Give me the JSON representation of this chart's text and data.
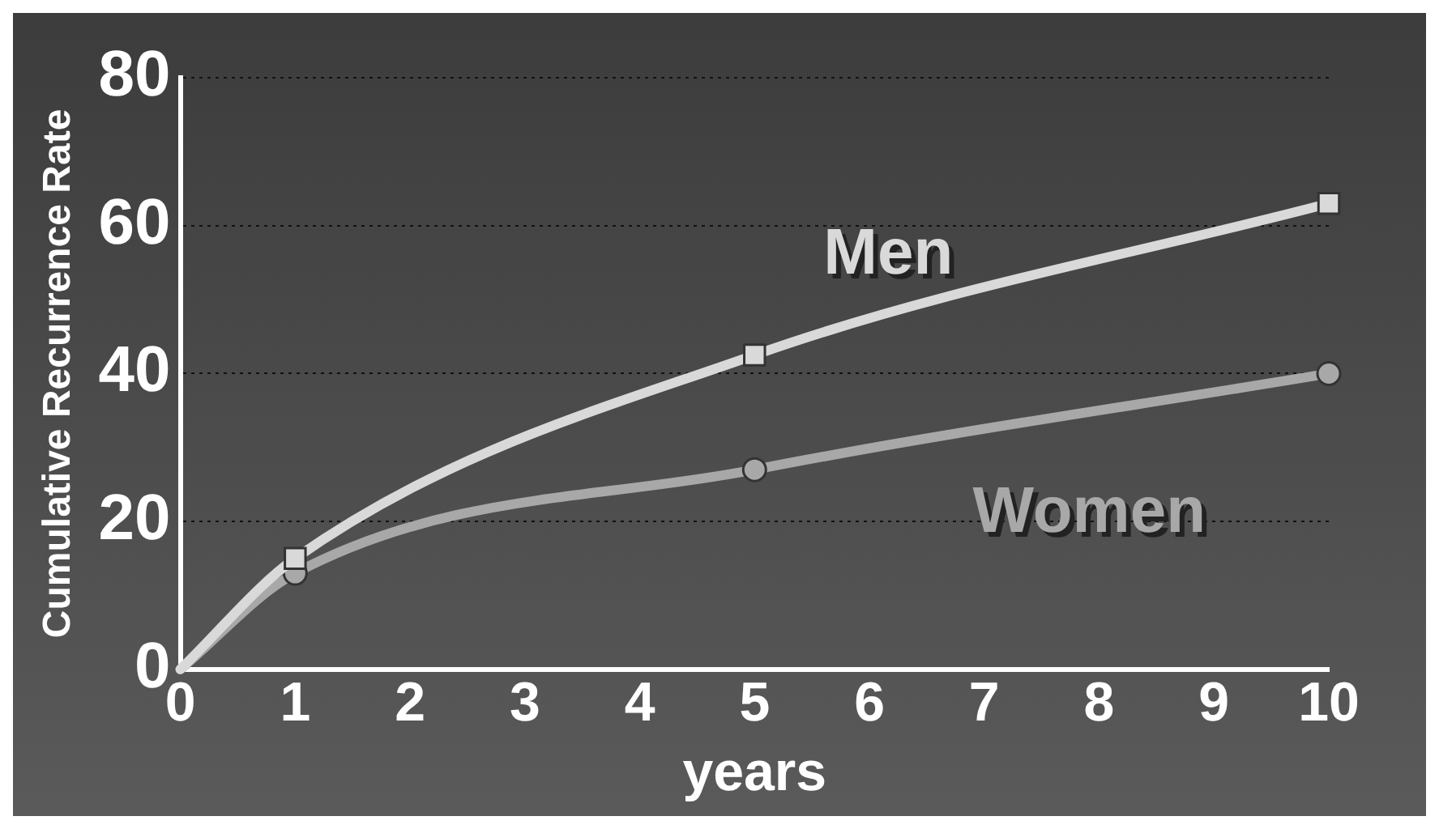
{
  "chart_data": {
    "type": "line",
    "xlabel": "years",
    "ylabel": "Cumulative Recurrence Rate",
    "x": [
      0,
      1,
      5,
      10
    ],
    "series": [
      {
        "name": "Men",
        "color": "#d9d9d9",
        "values": [
          0,
          15,
          42.5,
          63
        ],
        "marker": "square"
      },
      {
        "name": "Women",
        "color": "#a8a8a8",
        "values": [
          0,
          13,
          27,
          40
        ],
        "marker": "circle"
      }
    ],
    "xlim": [
      0,
      10
    ],
    "xticks": [
      0,
      1,
      2,
      3,
      4,
      5,
      6,
      7,
      8,
      9,
      10
    ],
    "ylim": [
      0,
      80
    ],
    "yticks": [
      0,
      20,
      40,
      60,
      80
    ],
    "grid": "y",
    "legend": false
  }
}
